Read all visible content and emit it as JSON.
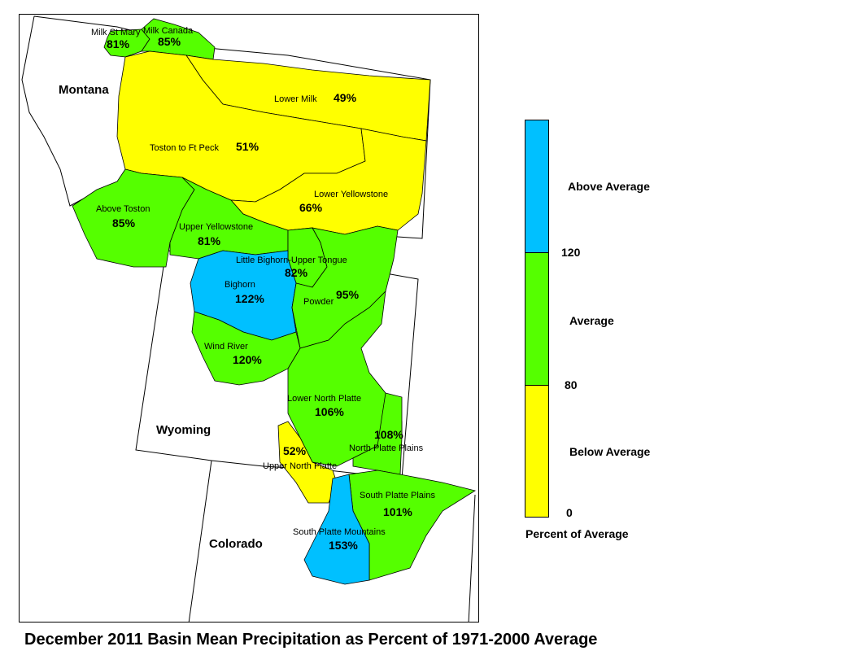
{
  "title": "December 2011 Basin Mean Precipitation as Percent of 1971-2000 Average",
  "colors": {
    "above": "#00c0ff",
    "average": "#55ff00",
    "below": "#ffff00",
    "border": "#000000"
  },
  "states": {
    "montana": "Montana",
    "wyoming": "Wyoming",
    "colorado": "Colorado"
  },
  "basins": [
    {
      "name": "Milk St Mary",
      "pct": "81%",
      "category": "average"
    },
    {
      "name": "Milk Canada",
      "pct": "85%",
      "category": "average"
    },
    {
      "name": "Lower Milk",
      "pct": "49%",
      "category": "below"
    },
    {
      "name": "Toston to Ft Peck",
      "pct": "51%",
      "category": "below"
    },
    {
      "name": "Lower Yellowstone",
      "pct": "66%",
      "category": "below"
    },
    {
      "name": "Above Toston",
      "pct": "85%",
      "category": "average"
    },
    {
      "name": "Upper Yellowstone",
      "pct": "81%",
      "category": "average"
    },
    {
      "name": "Little Bighorn-Upper Tongue",
      "pct": "82%",
      "category": "average"
    },
    {
      "name": "Bighorn",
      "pct": "122%",
      "category": "above"
    },
    {
      "name": "Powder",
      "pct": "95%",
      "category": "average"
    },
    {
      "name": "Wind River",
      "pct": "120%",
      "category": "average"
    },
    {
      "name": "Lower North Platte",
      "pct": "106%",
      "category": "average"
    },
    {
      "name": "North Platte Plains",
      "pct": "108%",
      "category": "average"
    },
    {
      "name": "Upper North Platte",
      "pct": "52%",
      "category": "below"
    },
    {
      "name": "South Platte Plains",
      "pct": "101%",
      "category": "average"
    },
    {
      "name": "South Platte Mountains",
      "pct": "153%",
      "category": "above"
    }
  ],
  "legend": {
    "above_label": "Above Average",
    "average_label": "Average",
    "below_label": "Below Average",
    "tick_high": "120",
    "tick_mid": "80",
    "tick_low": "0",
    "caption": "Percent of Average"
  }
}
